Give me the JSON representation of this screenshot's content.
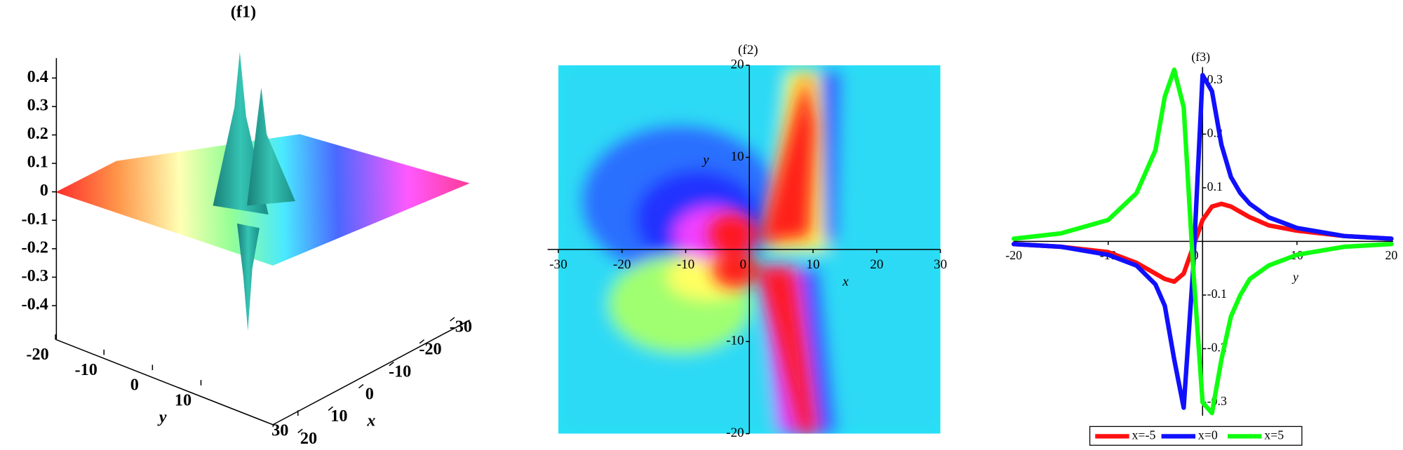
{
  "chart_data": [
    {
      "type": "surface3d",
      "title": "(f1)",
      "xlabel": "x",
      "ylabel": "y",
      "xlim": [
        -30,
        30
      ],
      "xticks": [
        -30,
        -20,
        -10,
        0,
        10,
        20
      ],
      "ylim": [
        -20,
        30
      ],
      "yticks": [
        -20,
        -10,
        0,
        10,
        30
      ],
      "zlim": [
        -0.52,
        0.47
      ],
      "zticks": [
        -0.4,
        -0.3,
        -0.2,
        -0.1,
        0,
        0.1,
        0.2,
        0.3,
        0.4
      ]
    },
    {
      "type": "density",
      "title": "(f2)",
      "xlabel": "x",
      "ylabel": "y",
      "xlim": [
        -30,
        30
      ],
      "xticks": [
        -30,
        -20,
        -10,
        0,
        10,
        20,
        30
      ],
      "ylim": [
        -20,
        20
      ],
      "yticks": [
        -20,
        -10,
        10,
        20
      ]
    },
    {
      "type": "line",
      "title": "(f3)",
      "xlabel": "y",
      "legend": "bottom",
      "xlim": [
        -20,
        20
      ],
      "xticks": [
        -20,
        -10,
        0,
        10,
        20
      ],
      "ylim": [
        -0.325,
        0.325
      ],
      "yticks": [
        -0.3,
        -0.2,
        -0.1,
        0.1,
        0.2,
        0.3
      ],
      "x": [
        -20,
        -15,
        -10,
        -7,
        -5,
        -4,
        -3,
        -2,
        -1,
        0,
        1,
        2,
        3,
        4,
        5,
        7,
        10,
        15,
        20
      ],
      "series": [
        {
          "name": "x=-5",
          "color": "#ff1010",
          "values": [
            -0.005,
            -0.01,
            -0.02,
            -0.04,
            -0.06,
            -0.07,
            -0.075,
            -0.06,
            -0.01,
            0.04,
            0.065,
            0.07,
            0.065,
            0.055,
            0.045,
            0.03,
            0.02,
            0.01,
            0.005
          ]
        },
        {
          "name": "x=0",
          "color": "#1010ff",
          "values": [
            -0.005,
            -0.01,
            -0.025,
            -0.045,
            -0.08,
            -0.12,
            -0.22,
            -0.31,
            -0.05,
            0.31,
            0.28,
            0.18,
            0.12,
            0.09,
            0.07,
            0.045,
            0.025,
            0.01,
            0.005
          ]
        },
        {
          "name": "x=5",
          "color": "#10ff10",
          "values": [
            0.005,
            0.015,
            0.04,
            0.09,
            0.17,
            0.27,
            0.32,
            0.25,
            -0.05,
            -0.3,
            -0.32,
            -0.22,
            -0.14,
            -0.1,
            -0.07,
            -0.045,
            -0.025,
            -0.01,
            -0.005
          ]
        }
      ]
    }
  ]
}
